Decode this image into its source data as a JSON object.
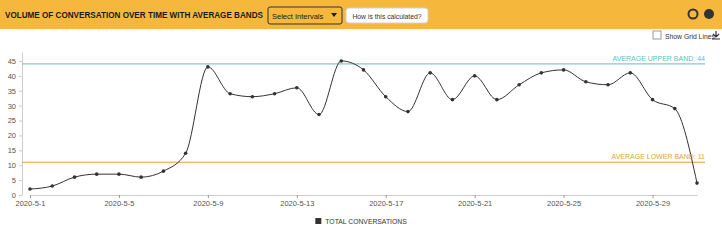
{
  "chart_data": {
    "type": "line",
    "title": "VOLUME OF CONVERSATION OVER TIME WITH AVERAGE BANDS",
    "controls": {
      "dropdown": "Select Intervals",
      "button": "How is this calculated?",
      "checkbox": "Show Grid Lines"
    },
    "categories": [
      "2020-5-1",
      null,
      null,
      null,
      "2020-5-5",
      null,
      null,
      null,
      "2020-5-9",
      null,
      null,
      null,
      "2020-5-13",
      null,
      null,
      null,
      "2020-5-17",
      null,
      null,
      null,
      "2020-5-21",
      null,
      null,
      null,
      "2020-5-25",
      null,
      null,
      null,
      "2020-5-29",
      null,
      null
    ],
    "series": [
      {
        "name": "TOTAL CONVERSATIONS",
        "color": "#333333",
        "marker": "circle",
        "line_style": "solid",
        "values": [
          2,
          3,
          6,
          7,
          7,
          6,
          8,
          14,
          43,
          34,
          33,
          34,
          36,
          27,
          45,
          42,
          33,
          28,
          41,
          32,
          40,
          32,
          37,
          41,
          42,
          38,
          37,
          41,
          32,
          29,
          4
        ]
      }
    ],
    "ylim": [
      0,
      48
    ],
    "yticks": [
      0,
      5,
      10,
      15,
      20,
      25,
      30,
      35,
      40,
      45
    ],
    "grid": false,
    "legend": "bottom",
    "annotations": [
      {
        "type": "hline",
        "value": 44,
        "label": "AVERAGE UPPER BAND: 44",
        "color": "#5fbfbb"
      },
      {
        "type": "hline",
        "value": 11,
        "label": "AVERAGE LOWER BAND: 11",
        "color": "#e0a33a"
      }
    ]
  }
}
